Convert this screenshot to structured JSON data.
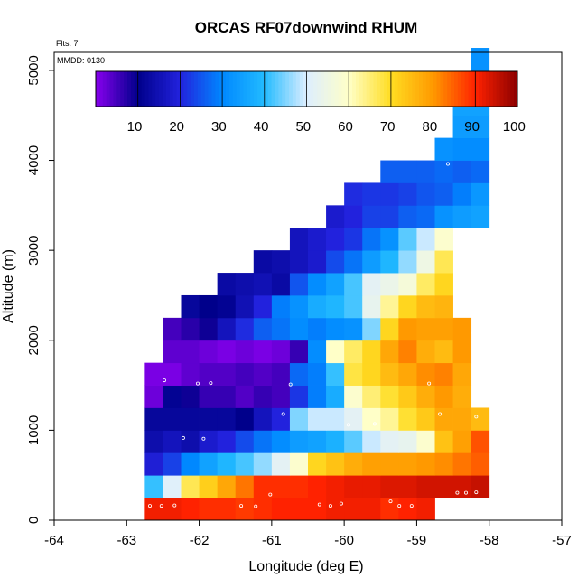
{
  "chart_data": {
    "type": "heatmap",
    "title": "ORCAS RF07downwind RHUM",
    "xlabel": "Longitude (deg E)",
    "ylabel": "Altitude (m)",
    "xlim": [
      -64,
      -57
    ],
    "ylim": [
      0,
      5200
    ],
    "x_ticks": [
      -64,
      -63,
      -62,
      -61,
      -60,
      -59,
      -58,
      -57
    ],
    "x_tick_labels": [
      "-64",
      "-63",
      "-62",
      "-61",
      "-60",
      "-59",
      "-58",
      "-57"
    ],
    "y_ticks": [
      0,
      1000,
      2000,
      3000,
      4000,
      5000
    ],
    "y_tick_labels": [
      "0",
      "1000",
      "2000",
      "3000",
      "4000",
      "5000"
    ],
    "flights_label": "Flts: 7",
    "date_label": "MMDD: 0130",
    "colorbar": {
      "min": 1,
      "max": 101,
      "ticks": [
        10,
        20,
        30,
        40,
        50,
        60,
        70,
        80,
        90,
        100
      ],
      "tick_labels": [
        "10",
        "20",
        "30",
        "40",
        "50",
        "60",
        "70",
        "80",
        "90",
        "100"
      ],
      "colors": [
        "#8800ee",
        "#00008b",
        "#2222dd",
        "#0088ff",
        "#22bbff",
        "#ddeeff",
        "#ffffc8",
        "#ffdd22",
        "#ff9900",
        "#ff2200",
        "#8b0000"
      ],
      "divider_values": [
        11,
        21,
        31,
        41,
        51,
        61,
        71,
        81,
        91
      ]
    },
    "grid": {
      "lon_start": -62.75,
      "lon_step": 0.25,
      "alt_start": 0,
      "alt_step": 250,
      "rows": [
        {
          "start": 0,
          "values": [
            92,
            92,
            91,
            90,
            90,
            89,
            90,
            91,
            91,
            91,
            92,
            92,
            92,
            90,
            91,
            92
          ]
        },
        {
          "start": 0,
          "values": [
            42,
            52,
            68,
            73,
            79,
            84,
            90,
            90,
            90,
            91,
            92,
            93,
            93,
            94,
            94,
            95,
            95,
            95,
            96
          ]
        },
        {
          "start": 0,
          "values": [
            20,
            24,
            31,
            36,
            40,
            43,
            47,
            53,
            60,
            72,
            75,
            78,
            80,
            80,
            80,
            81,
            82,
            84,
            86
          ]
        },
        {
          "start": 0,
          "values": [
            15,
            17,
            15,
            19,
            21,
            25,
            29,
            32,
            35,
            36,
            39,
            44,
            50,
            53,
            54,
            60,
            75,
            80,
            87
          ]
        },
        {
          "start": 0,
          "values": [
            13,
            13,
            13,
            13,
            13,
            11,
            17,
            21,
            46,
            50,
            50,
            53,
            61,
            64,
            70,
            74,
            79,
            79,
            76
          ]
        },
        {
          "start": 0,
          "values": [
            3,
            12,
            10,
            7,
            7,
            5,
            7,
            6,
            23,
            30,
            38,
            60,
            66,
            70,
            74,
            78,
            81,
            78
          ]
        },
        {
          "start": 0,
          "values": [
            2,
            2,
            4,
            5,
            5,
            6,
            5,
            6,
            28,
            30,
            42,
            69,
            72,
            76,
            79,
            82,
            83,
            79
          ]
        },
        {
          "start": 1,
          "values": [
            4,
            4,
            3,
            2,
            3,
            2,
            3,
            7,
            32,
            61,
            67,
            72,
            79,
            83,
            78,
            76,
            81
          ]
        },
        {
          "start": 1,
          "values": [
            6,
            8,
            10,
            17,
            22,
            27,
            29,
            32,
            30,
            32,
            33,
            46,
            72,
            81,
            80,
            80,
            81
          ]
        },
        {
          "start": 2,
          "values": [
            13,
            11,
            12,
            16,
            21,
            30,
            33,
            38,
            40,
            43,
            54,
            64,
            72,
            76,
            77
          ]
        },
        {
          "start": 4,
          "values": [
            14,
            15,
            16,
            14,
            26,
            32,
            36,
            43,
            53,
            55,
            58,
            67,
            72
          ]
        },
        {
          "start": 6,
          "values": [
            14,
            15,
            17,
            19,
            25,
            29,
            35,
            40,
            47,
            56,
            68
          ]
        },
        {
          "start": 8,
          "values": [
            17,
            19,
            21,
            23,
            29,
            33,
            44,
            50,
            60
          ]
        },
        {
          "start": 10,
          "values": [
            19,
            21,
            24,
            24,
            27,
            28,
            33,
            35,
            36
          ]
        },
        {
          "start": 11,
          "values": [
            22,
            23,
            23,
            24,
            26,
            27,
            30,
            34
          ]
        },
        {
          "start": 13,
          "values": [
            27,
            27,
            27,
            28,
            27,
            28
          ]
        },
        {
          "start": 16,
          "values": [
            33,
            32,
            32
          ]
        },
        {
          "start": 17,
          "values": [
            35,
            35
          ]
        },
        {
          "start": 17,
          "values": [
            36,
            36
          ]
        },
        {
          "start": 18,
          "values": [
            34
          ]
        },
        {
          "start": 18,
          "values": [
            33
          ]
        }
      ]
    },
    "sample_points": [
      {
        "lon": -62.84,
        "alt": 160
      },
      {
        "lon": -62.68,
        "alt": 160
      },
      {
        "lon": -62.52,
        "alt": 160
      },
      {
        "lon": -62.34,
        "alt": 165
      },
      {
        "lon": -61.42,
        "alt": 160
      },
      {
        "lon": -61.22,
        "alt": 155
      },
      {
        "lon": -60.34,
        "alt": 175
      },
      {
        "lon": -60.19,
        "alt": 160
      },
      {
        "lon": -60.04,
        "alt": 185
      },
      {
        "lon": -59.36,
        "alt": 210
      },
      {
        "lon": -59.24,
        "alt": 160
      },
      {
        "lon": -59.07,
        "alt": 160
      },
      {
        "lon": -61.02,
        "alt": 285
      },
      {
        "lon": -58.44,
        "alt": 305
      },
      {
        "lon": -58.32,
        "alt": 305
      },
      {
        "lon": -58.18,
        "alt": 310
      },
      {
        "lon": -62.84,
        "alt": 635
      },
      {
        "lon": -62.22,
        "alt": 915
      },
      {
        "lon": -61.94,
        "alt": 905
      },
      {
        "lon": -60.84,
        "alt": 1180
      },
      {
        "lon": -59.94,
        "alt": 1060
      },
      {
        "lon": -59.58,
        "alt": 1070
      },
      {
        "lon": -58.68,
        "alt": 1180
      },
      {
        "lon": -58.18,
        "alt": 1150
      },
      {
        "lon": -62.48,
        "alt": 1555
      },
      {
        "lon": -62.02,
        "alt": 1520
      },
      {
        "lon": -61.84,
        "alt": 1525
      },
      {
        "lon": -60.74,
        "alt": 1510
      },
      {
        "lon": -58.83,
        "alt": 1520
      },
      {
        "lon": -58.23,
        "alt": 2090
      },
      {
        "lon": -58.43,
        "alt": 3025
      },
      {
        "lon": -58.57,
        "alt": 3960
      }
    ]
  }
}
